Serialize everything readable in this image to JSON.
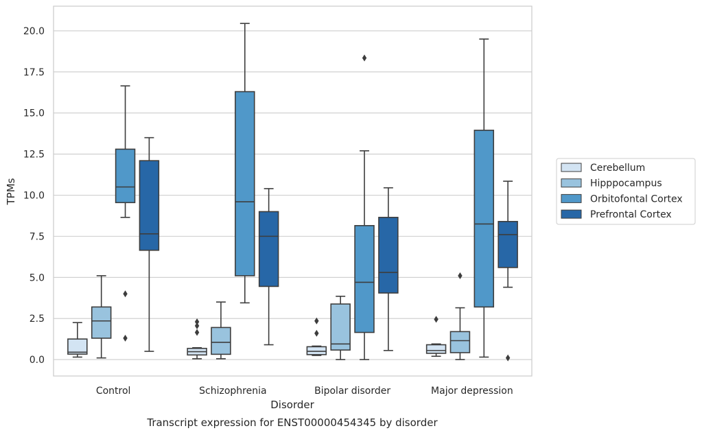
{
  "chart_data": {
    "type": "boxplot",
    "caption": "Transcript expression for ENST00000454345 by disorder",
    "xlabel": "Disorder",
    "ylabel": "TPMs",
    "ylim": [
      -1,
      21.5
    ],
    "yticks": [
      0.0,
      2.5,
      5.0,
      7.5,
      10.0,
      12.5,
      15.0,
      17.5,
      20.0
    ],
    "ytick_labels": [
      "0.0",
      "2.5",
      "5.0",
      "7.5",
      "10.0",
      "12.5",
      "15.0",
      "17.5",
      "20.0"
    ],
    "grid": "horizontal",
    "legend_position": "right",
    "categories": [
      "Control",
      "Schizophrenia",
      "Bipolar disorder",
      "Major depression"
    ],
    "series": [
      {
        "name": "Cerebellum",
        "color": "#d3e4f3",
        "boxes": [
          {
            "whislo": 0.15,
            "q1": 0.33,
            "med": 0.45,
            "q3": 1.25,
            "whishi": 2.25,
            "fliers": []
          },
          {
            "whislo": 0.05,
            "q1": 0.28,
            "med": 0.48,
            "q3": 0.68,
            "whishi": 0.72,
            "fliers": [
              1.65,
              2.05,
              2.3
            ]
          },
          {
            "whislo": 0.25,
            "q1": 0.3,
            "med": 0.5,
            "q3": 0.78,
            "whishi": 0.82,
            "fliers": [
              1.6,
              2.35
            ]
          },
          {
            "whislo": 0.2,
            "q1": 0.38,
            "med": 0.55,
            "q3": 0.9,
            "whishi": 0.95,
            "fliers": [
              2.45
            ]
          }
        ]
      },
      {
        "name": "Hipppocampus",
        "color": "#99c3de",
        "boxes": [
          {
            "whislo": 0.1,
            "q1": 1.3,
            "med": 2.35,
            "q3": 3.2,
            "whishi": 5.1,
            "fliers": []
          },
          {
            "whislo": 0.05,
            "q1": 0.32,
            "med": 1.05,
            "q3": 1.95,
            "whishi": 3.5,
            "fliers": []
          },
          {
            "whislo": 0.0,
            "q1": 0.58,
            "med": 0.95,
            "q3": 3.38,
            "whishi": 3.85,
            "fliers": []
          },
          {
            "whislo": 0.0,
            "q1": 0.42,
            "med": 1.15,
            "q3": 1.7,
            "whishi": 3.15,
            "fliers": [
              5.1
            ]
          }
        ]
      },
      {
        "name": "Orbitofontal Cortex",
        "color": "#5098c9",
        "boxes": [
          {
            "whislo": 8.65,
            "q1": 9.55,
            "med": 10.5,
            "q3": 12.8,
            "whishi": 16.65,
            "fliers": [
              1.3,
              4.0
            ]
          },
          {
            "whislo": 3.45,
            "q1": 5.1,
            "med": 9.6,
            "q3": 16.3,
            "whishi": 20.45,
            "fliers": []
          },
          {
            "whislo": 0.0,
            "q1": 1.65,
            "med": 4.7,
            "q3": 8.15,
            "whishi": 12.7,
            "fliers": [
              18.35
            ]
          },
          {
            "whislo": 0.15,
            "q1": 3.2,
            "med": 8.25,
            "q3": 13.95,
            "whishi": 19.5,
            "fliers": []
          }
        ]
      },
      {
        "name": "Prefrontal Cortex",
        "color": "#2767a7",
        "boxes": [
          {
            "whislo": 0.5,
            "q1": 6.65,
            "med": 7.65,
            "q3": 12.1,
            "whishi": 13.5,
            "fliers": []
          },
          {
            "whislo": 0.9,
            "q1": 4.45,
            "med": 7.5,
            "q3": 9.0,
            "whishi": 10.4,
            "fliers": []
          },
          {
            "whislo": 0.55,
            "q1": 4.05,
            "med": 5.3,
            "q3": 8.65,
            "whishi": 10.45,
            "fliers": []
          },
          {
            "whislo": 4.4,
            "q1": 5.6,
            "med": 7.6,
            "q3": 8.4,
            "whishi": 10.85,
            "fliers": [
              0.1
            ]
          }
        ]
      }
    ]
  }
}
